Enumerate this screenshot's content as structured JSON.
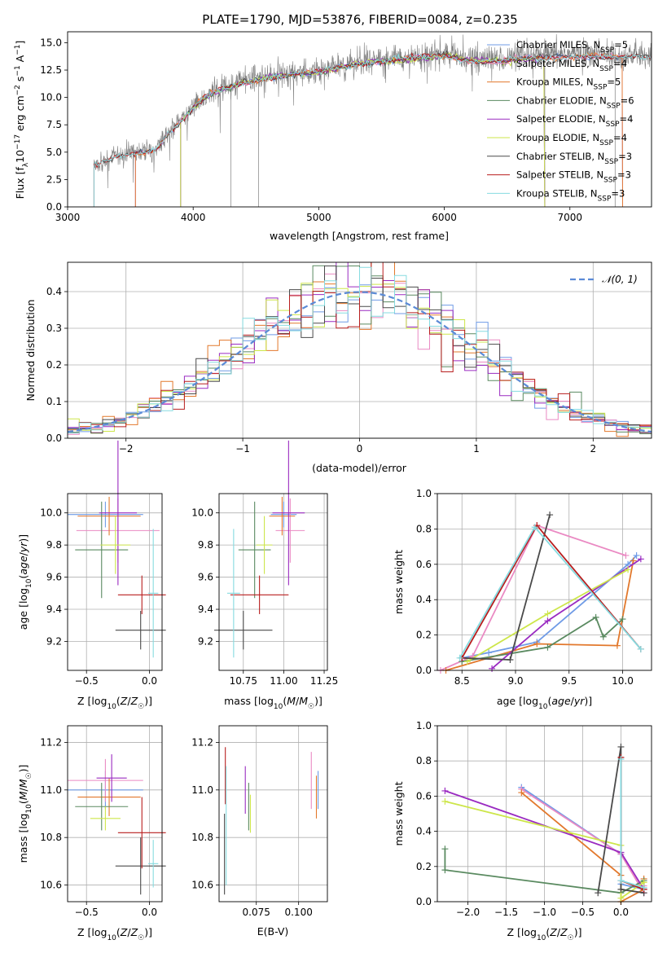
{
  "figure_title": "PLATE=1790, MJD=53876, FIBERID=0084, z=0.235",
  "colors": {
    "Chabrier MILES": "#6f9be6",
    "Salpeter MILES": "#ea8ac3",
    "Kroupa MILES": "#e2782c",
    "Chabrier ELODIE": "#5a8a60",
    "Salpeter ELODIE": "#9a2bc1",
    "Kroupa ELODIE": "#cde64a",
    "Chabrier STELIB": "#4a4a4a",
    "Salpeter STELIB": "#b81e1e",
    "Kroupa STELIB": "#86dbe0",
    "data": "#808080",
    "normal": "#5b8ad6"
  },
  "chart_data": [
    {
      "id": "spectrum",
      "type": "line",
      "xlabel": "wavelength [Angstrom, rest frame]",
      "ylabel": "Flux [f_λ 10^-17 erg cm^-2 s^-1 A^-1]",
      "xlim": [
        3000,
        7650
      ],
      "ylim": [
        0,
        16
      ],
      "xticks": [
        3000,
        4000,
        5000,
        6000,
        7000
      ],
      "yticks": [
        0.0,
        2.5,
        5.0,
        7.5,
        10.0,
        12.5,
        15.0
      ],
      "grid": false,
      "legend_position": "upper right",
      "legend": [
        {
          "name": "Chabrier MILES",
          "nssp": "5"
        },
        {
          "name": "Salpeter MILES",
          "nssp": "4"
        },
        {
          "name": "Kroupa MILES",
          "nssp": "5"
        },
        {
          "name": "Chabrier ELODIE",
          "nssp": "6"
        },
        {
          "name": "Salpeter ELODIE",
          "nssp": "4"
        },
        {
          "name": "Kroupa ELODIE",
          "nssp": "4"
        },
        {
          "name": "Chabrier STELIB",
          "nssp": "3"
        },
        {
          "name": "Salpeter STELIB",
          "nssp": "3"
        },
        {
          "name": "Kroupa STELIB",
          "nssp": "3"
        }
      ],
      "nssp_prefix": "N",
      "nssp_sub": "SSP",
      "data_continuum": [
        [
          3210,
          3.9
        ],
        [
          3400,
          4.6
        ],
        [
          3550,
          5.0
        ],
        [
          3700,
          5.2
        ],
        [
          3800,
          6.8
        ],
        [
          3900,
          7.9
        ],
        [
          4000,
          9.2
        ],
        [
          4100,
          10.2
        ],
        [
          4200,
          10.8
        ],
        [
          4400,
          11.5
        ],
        [
          4600,
          12.0
        ],
        [
          4800,
          12.3
        ],
        [
          5000,
          12.5
        ],
        [
          5200,
          13.0
        ],
        [
          5400,
          13.4
        ],
        [
          5600,
          13.6
        ],
        [
          5800,
          13.8
        ],
        [
          6000,
          14.0
        ],
        [
          6200,
          13.6
        ],
        [
          6400,
          13.5
        ],
        [
          6600,
          13.7
        ],
        [
          6800,
          13.8
        ],
        [
          7000,
          14.0
        ],
        [
          7200,
          14.0
        ],
        [
          7400,
          13.8
        ],
        [
          7650,
          13.9
        ]
      ],
      "model_ranges": {
        "Chabrier MILES": [
          3540,
          7420
        ],
        "Salpeter MILES": [
          3540,
          7420
        ],
        "Kroupa MILES": [
          3540,
          7420
        ],
        "Chabrier ELODIE": [
          3900,
          6800
        ],
        "Salpeter ELODIE": [
          3900,
          6800
        ],
        "Kroupa ELODIE": [
          3900,
          6800
        ],
        "Chabrier STELIB": [
          3210,
          7650
        ],
        "Salpeter STELIB": [
          3210,
          7650
        ],
        "Kroupa STELIB": [
          3210,
          7650
        ]
      }
    },
    {
      "id": "residuals",
      "type": "line",
      "xlabel": "(data-model)/error",
      "ylabel": "Normed distribution",
      "xlim": [
        -2.5,
        2.5
      ],
      "ylim": [
        0,
        0.48
      ],
      "xticks": [
        -2,
        -1,
        0,
        1,
        2
      ],
      "yticks": [
        0.0,
        0.1,
        0.2,
        0.3,
        0.4
      ],
      "grid": true,
      "legend_position": "upper right",
      "legend_label": "𝒩(0, 1)",
      "bins": 50
    },
    {
      "id": "Z-age",
      "type": "scatter",
      "xlabel": "Z [log10(Z/Z☉)]",
      "ylabel": "age [log10(age/yr)]",
      "xlim": [
        -0.65,
        0.1
      ],
      "ylim": [
        9.02,
        10.12
      ],
      "xticks": [
        -0.5,
        0.0
      ],
      "yticks": [
        9.2,
        9.4,
        9.6,
        9.8,
        10.0
      ],
      "grid": true,
      "points": [
        {
          "model": "Chabrier MILES",
          "x": -0.35,
          "xerr": 0.3,
          "y": 9.99,
          "yerr": 0.08
        },
        {
          "model": "Salpeter MILES",
          "x": -0.25,
          "xerr": 0.33,
          "y": 9.89,
          "yerr": 0.2
        },
        {
          "model": "Kroupa MILES",
          "x": -0.32,
          "xerr": 0.25,
          "y": 9.98,
          "yerr": 0.12
        },
        {
          "model": "Chabrier ELODIE",
          "x": -0.38,
          "xerr": 0.21,
          "y": 9.77,
          "yerr": 0.3
        },
        {
          "model": "Salpeter ELODIE",
          "x": -0.25,
          "xerr": 0.15,
          "y": 10.0,
          "yerr": 0.45
        },
        {
          "model": "Kroupa ELODIE",
          "x": -0.27,
          "xerr": 0.12,
          "y": 9.8,
          "yerr": 0.18
        },
        {
          "model": "Chabrier STELIB",
          "x": -0.07,
          "xerr": 0.2,
          "y": 9.27,
          "yerr": 0.12
        },
        {
          "model": "Salpeter STELIB",
          "x": -0.06,
          "xerr": 0.19,
          "y": 9.49,
          "yerr": 0.12
        },
        {
          "model": "Kroupa STELIB",
          "x": 0.03,
          "xerr": 0.04,
          "y": 9.5,
          "yerr": 0.4
        }
      ]
    },
    {
      "id": "mass-age",
      "type": "scatter",
      "xlabel": "mass [log10(M/M☉)]",
      "ylabel": "",
      "xlim": [
        10.6,
        11.27
      ],
      "ylim": [
        9.02,
        10.12
      ],
      "xticks": [
        10.75,
        11.0,
        11.25
      ],
      "yticks": [
        9.2,
        9.4,
        9.6,
        9.8,
        10.0
      ],
      "grid": true,
      "points": [
        {
          "model": "Chabrier MILES",
          "x": 11.0,
          "xerr": 0.08,
          "y": 9.99,
          "yerr": 0.08
        },
        {
          "model": "Salpeter MILES",
          "x": 11.04,
          "xerr": 0.09,
          "y": 9.89,
          "yerr": 0.2
        },
        {
          "model": "Kroupa MILES",
          "x": 10.99,
          "xerr": 0.08,
          "y": 9.98,
          "yerr": 0.12
        },
        {
          "model": "Chabrier ELODIE",
          "x": 10.82,
          "xerr": 0.1,
          "y": 9.77,
          "yerr": 0.3
        },
        {
          "model": "Salpeter ELODIE",
          "x": 11.03,
          "xerr": 0.1,
          "y": 10.0,
          "yerr": 0.45
        },
        {
          "model": "Kroupa ELODIE",
          "x": 10.88,
          "xerr": 0.05,
          "y": 9.8,
          "yerr": 0.18
        },
        {
          "model": "Chabrier STELIB",
          "x": 10.75,
          "xerr": 0.18,
          "y": 9.27,
          "yerr": 0.12
        },
        {
          "model": "Salpeter STELIB",
          "x": 10.85,
          "xerr": 0.18,
          "y": 9.49,
          "yerr": 0.12
        },
        {
          "model": "Kroupa STELIB",
          "x": 10.69,
          "xerr": 0.04,
          "y": 9.5,
          "yerr": 0.4
        }
      ]
    },
    {
      "id": "weights-age",
      "type": "line",
      "xlabel": "age [log10(age/yr)]",
      "ylabel": "mass weight",
      "xlim": [
        8.27,
        10.27
      ],
      "ylim": [
        0,
        1
      ],
      "xticks": [
        8.5,
        9.0,
        9.5,
        10.0
      ],
      "yticks": [
        0.0,
        0.2,
        0.4,
        0.6,
        0.8,
        1.0
      ],
      "grid": true,
      "series": [
        {
          "model": "Chabrier MILES",
          "x": [
            8.5,
            8.75,
            9.2,
            10.05,
            10.13
          ],
          "y": [
            0.07,
            0.1,
            0.16,
            0.6,
            0.65
          ]
        },
        {
          "model": "Salpeter MILES",
          "x": [
            8.3,
            8.6,
            9.2,
            10.03
          ],
          "y": [
            0.0,
            0.08,
            0.82,
            0.65
          ]
        },
        {
          "model": "Kroupa MILES",
          "x": [
            8.35,
            9.2,
            9.95,
            10.1
          ],
          "y": [
            0.0,
            0.15,
            0.14,
            0.62
          ]
        },
        {
          "model": "Chabrier ELODIE",
          "x": [
            8.5,
            9.3,
            9.75,
            9.82,
            10.0
          ],
          "y": [
            0.05,
            0.13,
            0.3,
            0.19,
            0.29
          ]
        },
        {
          "model": "Salpeter ELODIE",
          "x": [
            8.78,
            9.3,
            10.17
          ],
          "y": [
            0.01,
            0.28,
            0.63
          ]
        },
        {
          "model": "Kroupa ELODIE",
          "x": [
            8.55,
            9.3,
            10.05
          ],
          "y": [
            0.05,
            0.32,
            0.57
          ]
        },
        {
          "model": "Chabrier STELIB",
          "x": [
            8.5,
            8.95,
            9.32
          ],
          "y": [
            0.07,
            0.06,
            0.88
          ]
        },
        {
          "model": "Salpeter STELIB",
          "x": [
            8.5,
            9.2,
            10.17
          ],
          "y": [
            0.07,
            0.82,
            0.12
          ]
        },
        {
          "model": "Kroupa STELIB",
          "x": [
            8.48,
            9.18,
            10.17
          ],
          "y": [
            0.07,
            0.81,
            0.12
          ]
        }
      ]
    },
    {
      "id": "Z-mass",
      "type": "scatter",
      "xlabel": "Z [log10(Z/Z☉)]",
      "ylabel": "mass [log10(M/M☉)]",
      "xlim": [
        -0.65,
        0.1
      ],
      "ylim": [
        10.53,
        11.27
      ],
      "xticks": [
        -0.5,
        0.0
      ],
      "yticks": [
        10.6,
        10.8,
        11.0,
        11.2
      ],
      "grid": true,
      "points": [
        {
          "model": "Chabrier MILES",
          "x": -0.35,
          "xerr": 0.3,
          "y": 11.0,
          "yerr": 0.08
        },
        {
          "model": "Salpeter MILES",
          "x": -0.35,
          "xerr": 0.3,
          "y": 11.04,
          "yerr": 0.09
        },
        {
          "model": "Kroupa MILES",
          "x": -0.32,
          "xerr": 0.25,
          "y": 10.97,
          "yerr": 0.08
        },
        {
          "model": "Chabrier ELODIE",
          "x": -0.38,
          "xerr": 0.21,
          "y": 10.93,
          "yerr": 0.1
        },
        {
          "model": "Salpeter ELODIE",
          "x": -0.3,
          "xerr": 0.12,
          "y": 11.05,
          "yerr": 0.1
        },
        {
          "model": "Kroupa ELODIE",
          "x": -0.35,
          "xerr": 0.12,
          "y": 10.88,
          "yerr": 0.05
        },
        {
          "model": "Chabrier STELIB",
          "x": -0.07,
          "xerr": 0.2,
          "y": 10.68,
          "yerr": 0.12
        },
        {
          "model": "Salpeter STELIB",
          "x": -0.06,
          "xerr": 0.19,
          "y": 10.82,
          "yerr": 0.15
        },
        {
          "model": "Kroupa STELIB",
          "x": 0.03,
          "xerr": 0.04,
          "y": 10.69,
          "yerr": 0.1
        }
      ]
    },
    {
      "id": "EBV-mass",
      "type": "scatter",
      "xlabel": "E(B-V)",
      "ylabel": "",
      "xlim": [
        0.053,
        0.117
      ],
      "ylim": [
        10.53,
        11.27
      ],
      "xticks": [
        0.075,
        0.1
      ],
      "yticks": [
        10.6,
        10.8,
        11.0,
        11.2
      ],
      "grid": true,
      "points": [
        {
          "model": "Chabrier MILES",
          "x": 0.1115,
          "xerr": 0,
          "y": 11.0,
          "yerr": 0.08
        },
        {
          "model": "Salpeter MILES",
          "x": 0.1075,
          "xerr": 0,
          "y": 11.04,
          "yerr": 0.12
        },
        {
          "model": "Kroupa MILES",
          "x": 0.1105,
          "xerr": 0,
          "y": 10.97,
          "yerr": 0.09
        },
        {
          "model": "Chabrier ELODIE",
          "x": 0.0705,
          "xerr": 0,
          "y": 10.93,
          "yerr": 0.1
        },
        {
          "model": "Salpeter ELODIE",
          "x": 0.0685,
          "xerr": 0,
          "y": 11.0,
          "yerr": 0.1
        },
        {
          "model": "Kroupa ELODIE",
          "x": 0.0715,
          "xerr": 0,
          "y": 10.9,
          "yerr": 0.08
        },
        {
          "model": "Chabrier STELIB",
          "x": 0.0562,
          "xerr": 0,
          "y": 10.73,
          "yerr": 0.17
        },
        {
          "model": "Salpeter STELIB",
          "x": 0.0567,
          "xerr": 0,
          "y": 11.06,
          "yerr": 0.12
        },
        {
          "model": "Kroupa STELIB",
          "x": 0.0572,
          "xerr": 0,
          "y": 10.85,
          "yerr": 0.25
        }
      ]
    },
    {
      "id": "weights-Z",
      "type": "line",
      "xlabel": "Z [log10(Z/Z☉)]",
      "ylabel": "mass weight",
      "xlim": [
        -2.4,
        0.4
      ],
      "ylim": [
        0,
        1
      ],
      "xticks": [
        -2.0,
        -1.5,
        -1.0,
        -0.5,
        0.0
      ],
      "yticks": [
        0.0,
        0.2,
        0.4,
        0.6,
        0.8,
        1.0
      ],
      "grid": true,
      "series": [
        {
          "model": "Chabrier MILES",
          "x": [
            -1.3,
            0.0,
            0.0,
            0.3
          ],
          "y": [
            0.65,
            0.27,
            0.1,
            0.07
          ]
        },
        {
          "model": "Salpeter MILES",
          "x": [
            -1.3,
            0.0,
            0.3,
            0.3
          ],
          "y": [
            0.64,
            0.27,
            0.05,
            0.09
          ]
        },
        {
          "model": "Kroupa MILES",
          "x": [
            -1.3,
            0.0,
            0.0,
            0.3,
            0.3
          ],
          "y": [
            0.62,
            0.15,
            0.0,
            0.07,
            0.13
          ]
        },
        {
          "model": "Chabrier ELODIE",
          "x": [
            -2.3,
            -2.3,
            0.0,
            0.3
          ],
          "y": [
            0.3,
            0.18,
            0.05,
            0.12
          ]
        },
        {
          "model": "Salpeter ELODIE",
          "x": [
            -2.3,
            0.0,
            0.3
          ],
          "y": [
            0.63,
            0.28,
            0.07
          ]
        },
        {
          "model": "Kroupa ELODIE",
          "x": [
            -2.3,
            0.0,
            0.0,
            0.3
          ],
          "y": [
            0.57,
            0.32,
            0.02,
            0.11
          ]
        },
        {
          "model": "Chabrier STELIB",
          "x": [
            -0.3,
            0.0,
            0.0,
            0.3
          ],
          "y": [
            0.05,
            0.88,
            0.07,
            0.05
          ]
        },
        {
          "model": "Salpeter STELIB",
          "x": [
            0.0,
            0.0,
            0.3
          ],
          "y": [
            0.82,
            0.12,
            0.07
          ]
        },
        {
          "model": "Kroupa STELIB",
          "x": [
            0.0,
            0.0,
            0.3
          ],
          "y": [
            0.81,
            0.12,
            0.08
          ]
        }
      ]
    }
  ]
}
